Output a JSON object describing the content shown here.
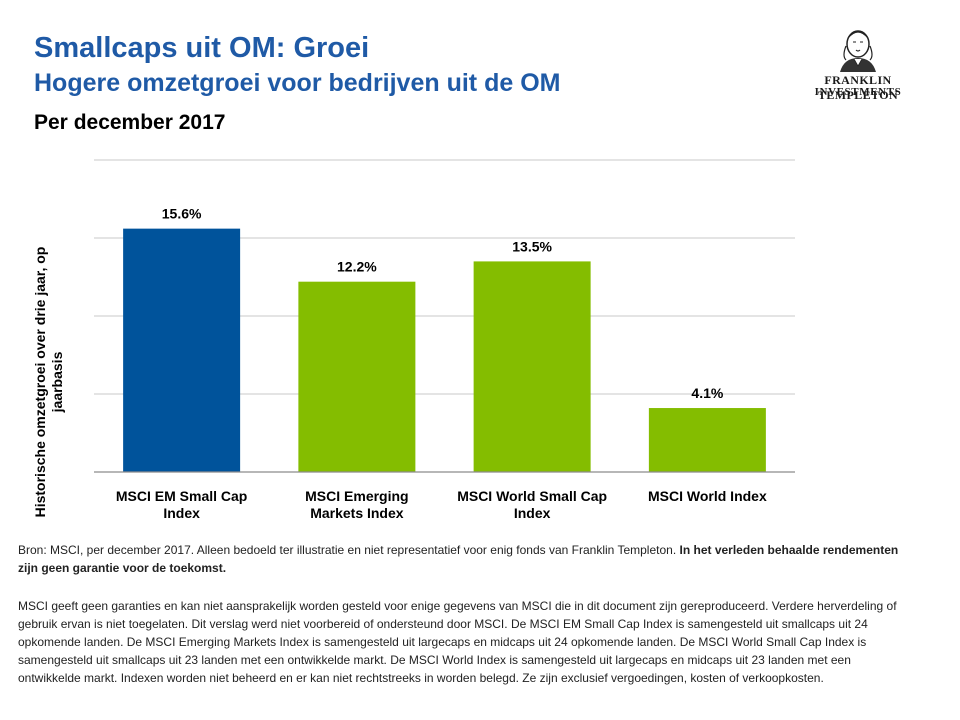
{
  "header": {
    "title": "Smallcaps uit OM: Groei",
    "subtitle": "Hogere omzetgroei voor bedrijven uit de OM",
    "date": "Per december 2017"
  },
  "logo": {
    "name": "FRANKLIN TEMPLETON",
    "sub": "INVESTMENTS"
  },
  "chart_data": {
    "type": "bar",
    "title": "",
    "xlabel": "",
    "ylabel": "Historische omzetgroei over drie jaar, op jaarbasis",
    "categories": [
      "MSCI EM Small Cap Index",
      "MSCI Emerging Markets Index",
      "MSCI World Small Cap Index",
      "MSCI World Index"
    ],
    "values": [
      15.6,
      12.2,
      13.5,
      4.1
    ],
    "value_labels": [
      "15.6%",
      "12.2%",
      "13.5%",
      "4.1%"
    ],
    "colors": [
      "#00539b",
      "#84bd00",
      "#84bd00",
      "#84bd00"
    ],
    "ylim": [
      0,
      20
    ],
    "grid": true,
    "legend": "none"
  },
  "footer": {
    "source_plain": "Bron: MSCI, per december 2017. Alleen bedoeld ter illustratie en niet representatief voor enig fonds van Franklin Templeton. ",
    "source_bold": "In het verleden behaalde rendementen zijn geen garantie voor de toekomst.",
    "disclaimer": "MSCI geeft geen garanties en kan niet aansprakelijk worden gesteld voor enige gegevens van MSCI die in dit document zijn gereproduceerd. Verdere herverdeling of gebruik ervan is niet toegelaten. Dit verslag werd niet voorbereid of ondersteund door MSCI. De MSCI EM Small Cap Index is samengesteld uit smallcaps uit 24 opkomende landen. De MSCI Emerging Markets Index is samengesteld uit largecaps en midcaps uit 24 opkomende landen. De MSCI World Small Cap Index is samengesteld uit smallcaps uit 23 landen met een ontwikkelde markt. De MSCI World Index is samengesteld uit largecaps en midcaps uit 23 landen met een ontwikkelde markt. Indexen worden niet beheerd en er kan niet rechtstreeks in worden belegd. Ze zijn exclusief vergoedingen, kosten of verkoopkosten."
  }
}
